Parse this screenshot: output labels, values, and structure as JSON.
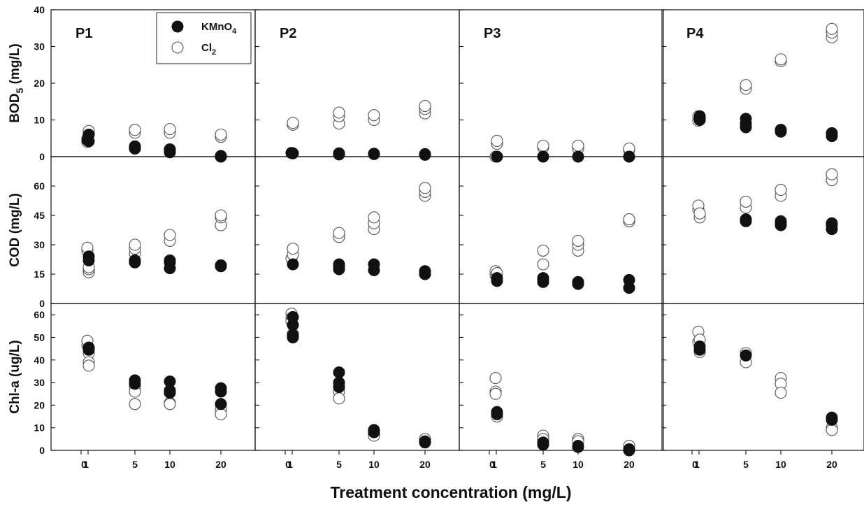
{
  "chart_data": {
    "type": "scatter",
    "xlabel": "Treatment concentration (mg/L)",
    "x_tick_labels": [
      "0",
      "1",
      "5",
      "10",
      "20"
    ],
    "legend": {
      "placement": "top-right of panel P1",
      "entries": [
        {
          "series": "KMnO4",
          "label": "KMnO",
          "subscript": "4",
          "marker": "filled"
        },
        {
          "series": "Cl2",
          "label": "Cl",
          "subscript": "2",
          "marker": "open"
        }
      ]
    },
    "columns": [
      "P1",
      "P2",
      "P3",
      "P4"
    ],
    "rows": [
      {
        "id": "bod",
        "ylabel": "BOD",
        "ylabel_sub": "5",
        "ylabel_tail": " (mg/L)",
        "ylim": [
          0,
          40
        ],
        "yticks": [
          0,
          10,
          20,
          30,
          40
        ]
      },
      {
        "id": "cod",
        "ylabel": "COD (mg/L)",
        "ylabel_sub": "",
        "ylabel_tail": "",
        "ylim": [
          0,
          75
        ],
        "yticks": [
          0,
          15,
          30,
          45,
          60
        ]
      },
      {
        "id": "chla",
        "ylabel": "Chl-a (ug/L)",
        "ylabel_sub": "",
        "ylabel_tail": "",
        "ylim": [
          0,
          65
        ],
        "yticks": [
          0,
          10,
          20,
          30,
          40,
          50,
          60
        ]
      }
    ],
    "panels": [
      {
        "row": "bod",
        "col": "P1",
        "series": {
          "KMnO4": [
            [
              0,
              4.5
            ],
            [
              1,
              4.2
            ],
            [
              1,
              6.0
            ],
            [
              5,
              2.2
            ],
            [
              5,
              2.8
            ],
            [
              5,
              2.5
            ],
            [
              10,
              1.2
            ],
            [
              10,
              1.6
            ],
            [
              10,
              2.0
            ],
            [
              20,
              0.1
            ],
            [
              20,
              0.0
            ],
            [
              20,
              0.2
            ]
          ],
          "Cl2": [
            [
              0,
              4.0
            ],
            [
              0,
              5.0
            ],
            [
              1,
              6.5
            ],
            [
              1,
              7.0
            ],
            [
              5,
              6.5
            ],
            [
              5,
              7.3
            ],
            [
              10,
              6.5
            ],
            [
              10,
              7.5
            ],
            [
              20,
              5.4
            ],
            [
              20,
              6.0
            ]
          ]
        }
      },
      {
        "row": "bod",
        "col": "P2",
        "series": {
          "KMnO4": [
            [
              0,
              1.0
            ],
            [
              1,
              0.9
            ],
            [
              5,
              0.9
            ],
            [
              5,
              0.6
            ],
            [
              10,
              0.7
            ],
            [
              10,
              0.8
            ],
            [
              20,
              0.7
            ],
            [
              20,
              0.5
            ]
          ],
          "Cl2": [
            [
              0,
              1.0
            ],
            [
              1,
              8.7
            ],
            [
              1,
              9.2
            ],
            [
              5,
              9.0
            ],
            [
              5,
              11.0
            ],
            [
              5,
              12.0
            ],
            [
              10,
              10.0
            ],
            [
              10,
              11.3
            ],
            [
              20,
              11.8
            ],
            [
              20,
              13.0
            ],
            [
              20,
              13.8
            ]
          ]
        }
      },
      {
        "row": "bod",
        "col": "P3",
        "series": {
          "KMnO4": [
            [
              1,
              0.0
            ],
            [
              5,
              0.0
            ],
            [
              10,
              0.0
            ],
            [
              20,
              0.0
            ]
          ],
          "Cl2": [
            [
              0,
              0.0
            ],
            [
              1,
              3.5
            ],
            [
              1,
              4.3
            ],
            [
              5,
              2.5
            ],
            [
              5,
              3.0
            ],
            [
              10,
              2.2
            ],
            [
              10,
              3.0
            ],
            [
              20,
              1.8
            ],
            [
              20,
              2.2
            ]
          ]
        }
      },
      {
        "row": "bod",
        "col": "P4",
        "series": {
          "KMnO4": [
            [
              1,
              10.0
            ],
            [
              1,
              10.8
            ],
            [
              1,
              11.0
            ],
            [
              5,
              8.0
            ],
            [
              5,
              9.0
            ],
            [
              5,
              10.3
            ],
            [
              10,
              6.8
            ],
            [
              10,
              7.3
            ],
            [
              20,
              5.6
            ],
            [
              20,
              6.4
            ]
          ],
          "Cl2": [
            [
              0,
              9.8
            ],
            [
              0,
              11.0
            ],
            [
              1,
              10.0
            ],
            [
              1,
              10.5
            ],
            [
              5,
              18.5
            ],
            [
              5,
              19.5
            ],
            [
              10,
              26.0
            ],
            [
              10,
              26.5
            ],
            [
              20,
              32.5
            ],
            [
              20,
              33.8
            ],
            [
              20,
              34.8
            ]
          ]
        }
      },
      {
        "row": "cod",
        "col": "P1",
        "series": {
          "KMnO4": [
            [
              1,
              22.0
            ],
            [
              1,
              24.0
            ],
            [
              5,
              21.0
            ],
            [
              5,
              22.0
            ],
            [
              10,
              18.0
            ],
            [
              10,
              21.0
            ],
            [
              10,
              22.0
            ],
            [
              20,
              19.0
            ],
            [
              20,
              19.5
            ]
          ],
          "Cl2": [
            [
              0,
              27.0
            ],
            [
              0,
              28.5
            ],
            [
              1,
              16.0
            ],
            [
              1,
              17.5
            ],
            [
              1,
              18.5
            ],
            [
              5,
              25.5
            ],
            [
              5,
              28.0
            ],
            [
              5,
              30.0
            ],
            [
              10,
              32.0
            ],
            [
              10,
              35.0
            ],
            [
              20,
              40.0
            ],
            [
              20,
              44.0
            ],
            [
              20,
              45.0
            ]
          ]
        }
      },
      {
        "row": "cod",
        "col": "P2",
        "series": {
          "KMnO4": [
            [
              1,
              20.0
            ],
            [
              5,
              17.5
            ],
            [
              5,
              19.0
            ],
            [
              5,
              20.0
            ],
            [
              10,
              17.0
            ],
            [
              10,
              20.0
            ],
            [
              20,
              15.0
            ],
            [
              20,
              16.5
            ]
          ],
          "Cl2": [
            [
              0,
              23.0
            ],
            [
              1,
              25.0
            ],
            [
              1,
              28.0
            ],
            [
              5,
              34.0
            ],
            [
              5,
              36.0
            ],
            [
              10,
              38.0
            ],
            [
              10,
              41.0
            ],
            [
              10,
              44.0
            ],
            [
              20,
              55.0
            ],
            [
              20,
              57.0
            ],
            [
              20,
              59.0
            ]
          ]
        }
      },
      {
        "row": "cod",
        "col": "P3",
        "series": {
          "KMnO4": [
            [
              1,
              11.5
            ],
            [
              1,
              13.0
            ],
            [
              5,
              11.0
            ],
            [
              5,
              12.5
            ],
            [
              5,
              13.0
            ],
            [
              10,
              10.0
            ],
            [
              10,
              11.0
            ],
            [
              20,
              8.0
            ],
            [
              20,
              12.0
            ]
          ],
          "Cl2": [
            [
              0,
              14.5
            ],
            [
              0,
              16.5
            ],
            [
              1,
              15.5
            ],
            [
              5,
              20.0
            ],
            [
              5,
              27.0
            ],
            [
              10,
              27.0
            ],
            [
              10,
              30.0
            ],
            [
              10,
              32.0
            ],
            [
              20,
              42.0
            ],
            [
              20,
              43.0
            ]
          ]
        }
      },
      {
        "row": "cod",
        "col": "P4",
        "series": {
          "KMnO4": [
            [
              5,
              42.0
            ],
            [
              5,
              43.0
            ],
            [
              10,
              40.0
            ],
            [
              10,
              41.0
            ],
            [
              10,
              42.0
            ],
            [
              20,
              38.0
            ],
            [
              20,
              40.0
            ],
            [
              20,
              41.0
            ]
          ],
          "Cl2": [
            [
              0,
              48.0
            ],
            [
              0,
              50.0
            ],
            [
              1,
              44.0
            ],
            [
              1,
              46.0
            ],
            [
              5,
              49.0
            ],
            [
              5,
              52.0
            ],
            [
              10,
              55.0
            ],
            [
              10,
              58.0
            ],
            [
              20,
              63.0
            ],
            [
              20,
              66.0
            ]
          ]
        }
      },
      {
        "row": "chla",
        "col": "P1",
        "series": {
          "KMnO4": [
            [
              1,
              45.5
            ],
            [
              1,
              44.5
            ],
            [
              5,
              31.0
            ],
            [
              5,
              29.5
            ],
            [
              10,
              30.5
            ],
            [
              10,
              25.5
            ],
            [
              10,
              26.5
            ],
            [
              20,
              27.5
            ],
            [
              20,
              26.0
            ],
            [
              20,
              20.5
            ]
          ],
          "Cl2": [
            [
              0,
              46.5
            ],
            [
              0,
              48.5
            ],
            [
              1,
              43.0
            ],
            [
              1,
              39.0
            ],
            [
              1,
              37.5
            ],
            [
              5,
              28.0
            ],
            [
              5,
              26.0
            ],
            [
              5,
              20.5
            ],
            [
              10,
              21.0
            ],
            [
              10,
              20.5
            ],
            [
              20,
              18.0
            ],
            [
              20,
              16.0
            ]
          ]
        }
      },
      {
        "row": "chla",
        "col": "P2",
        "series": {
          "KMnO4": [
            [
              1,
              59.0
            ],
            [
              1,
              55.5
            ],
            [
              1,
              51.0
            ],
            [
              1,
              50.0
            ],
            [
              5,
              34.5
            ],
            [
              5,
              30.0
            ],
            [
              5,
              28.0
            ],
            [
              10,
              9.0
            ],
            [
              10,
              8.0
            ],
            [
              20,
              3.5
            ],
            [
              20,
              4.0
            ]
          ],
          "Cl2": [
            [
              0,
              60.5
            ],
            [
              0,
              58.5
            ],
            [
              0,
              57.0
            ],
            [
              1,
              51.5
            ],
            [
              5,
              26.0
            ],
            [
              5,
              23.0
            ],
            [
              10,
              7.0
            ],
            [
              10,
              6.5
            ],
            [
              20,
              5.0
            ]
          ]
        }
      },
      {
        "row": "chla",
        "col": "P3",
        "series": {
          "KMnO4": [
            [
              1,
              17.0
            ],
            [
              1,
              16.0
            ],
            [
              5,
              2.5
            ],
            [
              5,
              3.5
            ],
            [
              10,
              1.5
            ],
            [
              10,
              2.0
            ],
            [
              20,
              0.0
            ],
            [
              20,
              0.5
            ]
          ],
          "Cl2": [
            [
              0,
              32.0
            ],
            [
              0,
              26.0
            ],
            [
              0,
              25.0
            ],
            [
              1,
              15.0
            ],
            [
              5,
              6.5
            ],
            [
              5,
              5.0
            ],
            [
              10,
              5.0
            ],
            [
              10,
              4.0
            ],
            [
              20,
              2.0
            ]
          ]
        }
      },
      {
        "row": "chla",
        "col": "P4",
        "series": {
          "KMnO4": [
            [
              1,
              46.0
            ],
            [
              1,
              44.5
            ],
            [
              5,
              42.0
            ],
            [
              20,
              14.5
            ],
            [
              20,
              13.5
            ]
          ],
          "Cl2": [
            [
              0,
              52.5
            ],
            [
              0,
              48.0
            ],
            [
              1,
              49.0
            ],
            [
              1,
              43.5
            ],
            [
              5,
              43.0
            ],
            [
              5,
              39.0
            ],
            [
              10,
              32.0
            ],
            [
              10,
              29.5
            ],
            [
              10,
              25.5
            ],
            [
              20,
              10.0
            ],
            [
              20,
              9.0
            ]
          ]
        }
      }
    ]
  }
}
